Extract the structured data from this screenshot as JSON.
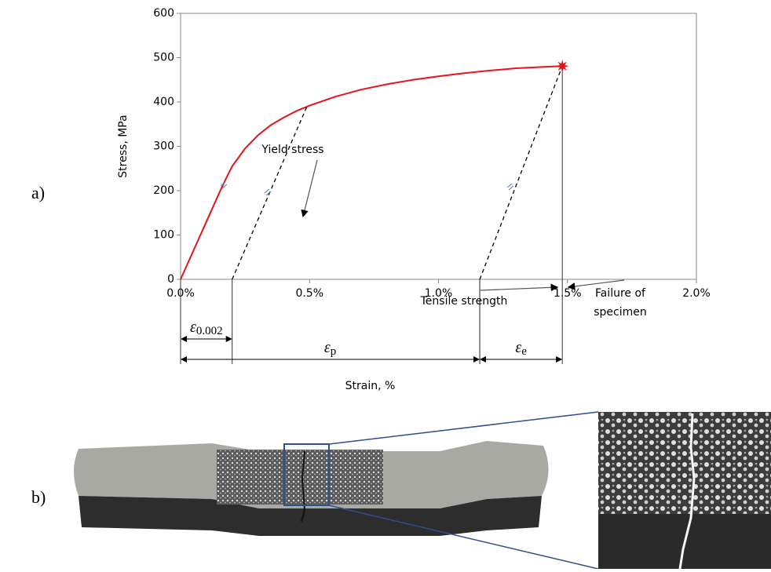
{
  "chart_data": {
    "type": "line",
    "panel_labels": [
      "a)",
      "b)"
    ],
    "xlabel": "Strain, %",
    "ylabel": "Stress, MPa",
    "xlim": [
      0,
      2
    ],
    "ylim": [
      0,
      600
    ],
    "xticks": [
      {
        "value": 0,
        "label": "0.0%"
      },
      {
        "value": 0.5,
        "label": "0.5%"
      },
      {
        "value": 1,
        "label": "1.0%"
      },
      {
        "value": 1.5,
        "label": "1.5%"
      },
      {
        "value": 2,
        "label": "2.0%"
      }
    ],
    "yticks": [
      0,
      100,
      200,
      300,
      400,
      500,
      600
    ],
    "series": [
      {
        "color": "#e8141c",
        "x": [
          0,
          0.05,
          0.1,
          0.15,
          0.18,
          0.2,
          0.25,
          0.3,
          0.35,
          0.4,
          0.45,
          0.5,
          0.6,
          0.7,
          0.8,
          0.9,
          1.0,
          1.1,
          1.2,
          1.3,
          1.4,
          1.48
        ],
        "values": [
          0,
          65,
          130,
          195,
          232,
          255,
          295,
          325,
          348,
          365,
          380,
          392,
          412,
          428,
          440,
          450,
          458,
          465,
          471,
          476,
          479,
          481
        ]
      },
      {
        "color": "#000000",
        "dashed": true,
        "x": [
          0.2,
          0.49
        ],
        "values": [
          0,
          390
        ]
      },
      {
        "color": "#000000",
        "dashed": true,
        "x": [
          1.16,
          1.48
        ],
        "values": [
          0,
          481
        ]
      }
    ],
    "failure_point": {
      "x": 1.48,
      "value": 481,
      "color": "#e8141c"
    },
    "annotations": [
      "Yield stress",
      "Tensile strength",
      "Failure of",
      "specimen"
    ],
    "dimensions": [
      {
        "symbol": "ε",
        "subscript": "0.002",
        "from": 0,
        "to": 0.2
      },
      {
        "symbol": "ε",
        "subscript": "p",
        "from": 0,
        "to": 1.16
      },
      {
        "symbol": "ε",
        "subscript": "e",
        "from": 1.16,
        "to": 1.48
      }
    ]
  }
}
